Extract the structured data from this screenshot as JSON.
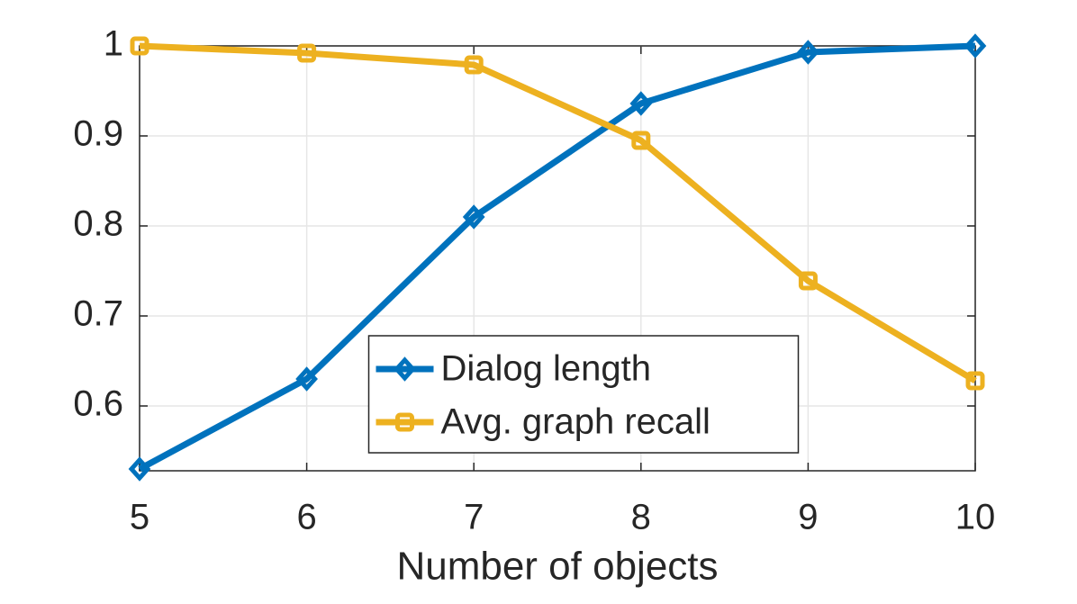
{
  "chart_data": {
    "type": "line",
    "xlabel": "Number of objects",
    "x": [
      5,
      6,
      7,
      8,
      9,
      10
    ],
    "series": [
      {
        "name": "Dialog length",
        "color": "#0072bd",
        "marker": "diamond",
        "values": [
          0.53,
          0.63,
          0.81,
          0.936,
          0.993,
          1.0
        ]
      },
      {
        "name": "Avg. graph recall",
        "color": "#edb120",
        "marker": "square",
        "values": [
          1.0,
          0.992,
          0.979,
          0.895,
          0.739,
          0.628
        ]
      }
    ],
    "xlim": [
      5,
      10
    ],
    "xticks": [
      5,
      6,
      7,
      8,
      9,
      10
    ],
    "ylim": [
      0.528,
      1.0
    ],
    "yticks": [
      0.6,
      0.7,
      0.8,
      0.9,
      1
    ],
    "grid": true,
    "legend": "south"
  }
}
